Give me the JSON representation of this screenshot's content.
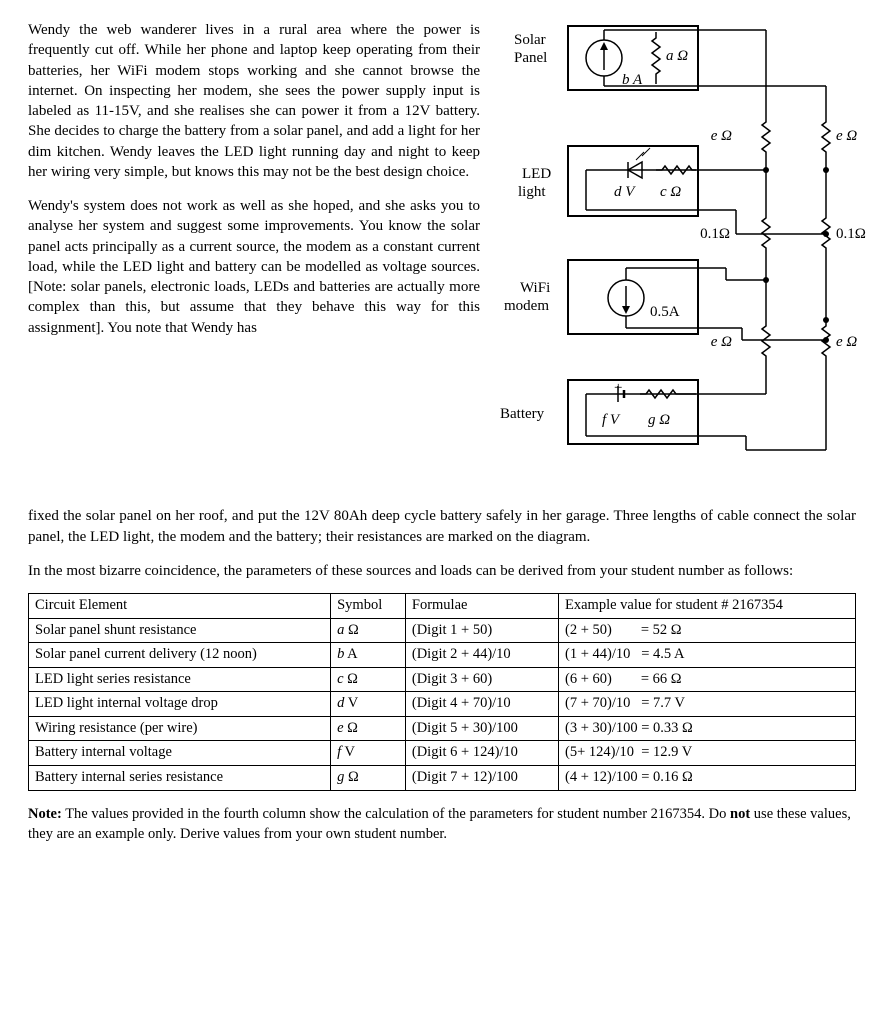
{
  "para1": "Wendy the web wanderer lives in a rural area where the power is frequently cut off. While her phone and laptop keep operating from their batteries, her WiFi modem stops working and she cannot browse the internet. On inspecting her modem, she sees the power supply input is labeled as 11-15V, and she realises she can power it from a 12V battery. She decides to charge the battery from a solar panel, and add a light for her dim kitchen. Wendy leaves the LED light running day and night to keep her wiring very simple, but knows this may not be the best design choice.",
  "para2": "Wendy's system does not work as well as she hoped, and she asks you to analyse her system and suggest some improvements. You know the solar panel acts principally as a current source, the modem as a constant current load, while the LED light and battery can be modelled as voltage sources. [Note: solar panels, electronic loads, LEDs and batteries are actually more complex than this, but assume that they behave this way for this assignment]. You note that Wendy has fixed the solar panel on her roof, and put the 12V 80Ah deep cycle battery safely in her garage. Three lengths of cable connect the solar panel, the LED light, the modem and the battery; their resistances are marked on the diagram.",
  "param_intro": "In the most bizarre coincidence, the parameters of these sources and loads can be derived from your student number as follows:",
  "table": {
    "head": {
      "c1": "Circuit Element",
      "c2": "Symbol",
      "c3": "Formulae",
      "c4": "Example value for student # 2167354"
    },
    "rows": [
      {
        "el": "Solar panel shunt resistance",
        "sym": "a Ω",
        "form": "(Digit 1 + 50)",
        "ex": "(2 + 50)        = 52 Ω"
      },
      {
        "el": "Solar panel current delivery (12 noon)",
        "sym": "b A",
        "form": "(Digit 2 + 44)/10",
        "ex": "(1 + 44)/10   = 4.5 A"
      },
      {
        "el": "LED light series resistance",
        "sym": "c Ω",
        "form": "(Digit 3 + 60)",
        "ex": "(6 + 60)        = 66 Ω"
      },
      {
        "el": "LED light internal voltage drop",
        "sym": "d V",
        "form": "(Digit 4 + 70)/10",
        "ex": "(7 + 70)/10   = 7.7 V"
      },
      {
        "el": "Wiring resistance (per wire)",
        "sym": "e Ω",
        "form": "(Digit 5 + 30)/100",
        "ex": "(3 + 30)/100 = 0.33 Ω"
      },
      {
        "el": "Battery internal voltage",
        "sym": "f V",
        "form": "(Digit 6 + 124)/10",
        "ex": "(5+ 124)/10  = 12.9 V"
      },
      {
        "el": "Battery internal series resistance",
        "sym": "g Ω",
        "form": "(Digit 7 + 12)/100",
        "ex": "(4 + 12)/100 = 0.16 Ω"
      }
    ]
  },
  "note_bold": "Note:",
  "note_text1": " The values provided in the fourth column show the calculation of the parameters for student number 2167354. Do ",
  "note_bold2": "not",
  "note_text2": " use these values, they are an example only. Derive values from your own student number.",
  "diagram": {
    "labels": {
      "solar1": "Solar",
      "solar2": "Panel",
      "led1": "LED",
      "led2": "light",
      "wifi1": "WiFi",
      "wifi2": "modem",
      "battery": "Battery",
      "a_ohm": "a Ω",
      "b_A": "b A",
      "c_ohm": "c Ω",
      "d_V": "d V",
      "e_ohm": "e Ω",
      "r01_1": "0.1Ω",
      "r01_2": "0.1Ω",
      "i05A": "0.5A",
      "f_V": "f V",
      "g_ohm": "g Ω"
    }
  }
}
